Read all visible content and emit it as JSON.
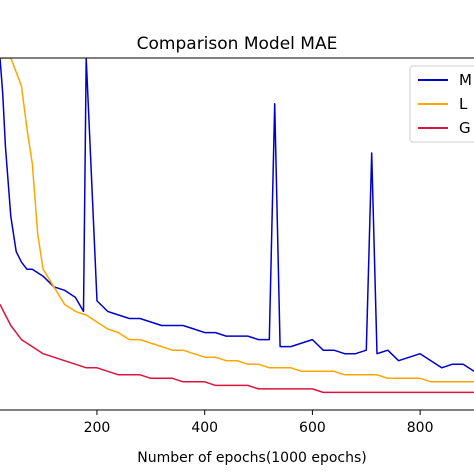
{
  "chart_data": {
    "type": "line",
    "title": "Comparison Model MAE",
    "xlabel": "Number of epochs(1000 epochs)",
    "ylabel": "",
    "xlim": [
      20,
      900
    ],
    "ylim": [
      0,
      100
    ],
    "x_ticks": [
      200,
      400,
      600,
      800
    ],
    "x_tick_labels": [
      "200",
      "400",
      "600",
      "800"
    ],
    "grid": false,
    "legend_position": "top-right",
    "legend_labels": [
      "M",
      "L",
      "G"
    ],
    "series": [
      {
        "color": "#0000cc",
        "x": [
          20,
          25,
          30,
          40,
          50,
          60,
          70,
          80,
          100,
          120,
          140,
          160,
          175,
          180,
          200,
          220,
          240,
          260,
          280,
          300,
          320,
          340,
          360,
          380,
          400,
          420,
          440,
          460,
          480,
          500,
          520,
          530,
          540,
          560,
          580,
          600,
          620,
          640,
          660,
          680,
          700,
          710,
          720,
          740,
          760,
          780,
          800,
          820,
          840,
          860,
          880,
          900
        ],
        "values": [
          100,
          90,
          75,
          55,
          45,
          42,
          40,
          40,
          38,
          35,
          34,
          32,
          28,
          100,
          31,
          28,
          27,
          26,
          26,
          25,
          24,
          24,
          24,
          23,
          22,
          22,
          21,
          21,
          21,
          20,
          20,
          87,
          18,
          18,
          19,
          20,
          17,
          17,
          16,
          16,
          17,
          73,
          16,
          17,
          14,
          15,
          16,
          14,
          12,
          13,
          13,
          11
        ]
      },
      {
        "color": "#ffa500",
        "x": [
          20,
          30,
          40,
          50,
          60,
          70,
          80,
          90,
          100,
          120,
          140,
          160,
          180,
          200,
          220,
          240,
          260,
          280,
          300,
          320,
          340,
          360,
          380,
          400,
          420,
          440,
          460,
          480,
          500,
          520,
          540,
          560,
          580,
          600,
          620,
          640,
          660,
          680,
          700,
          720,
          740,
          760,
          780,
          800,
          820,
          840,
          860,
          880,
          900
        ],
        "values": [
          100,
          100,
          100,
          96,
          92,
          80,
          70,
          50,
          40,
          35,
          30,
          28,
          27,
          25,
          23,
          22,
          20,
          20,
          19,
          18,
          17,
          17,
          16,
          15,
          15,
          14,
          14,
          13,
          13,
          12,
          12,
          12,
          11,
          11,
          11,
          11,
          10,
          10,
          10,
          10,
          9,
          9,
          9,
          9,
          8,
          8,
          8,
          8,
          8
        ]
      },
      {
        "color": "#dc143c",
        "x": [
          20,
          30,
          40,
          60,
          80,
          100,
          120,
          140,
          160,
          180,
          200,
          220,
          240,
          260,
          280,
          300,
          320,
          340,
          360,
          380,
          400,
          420,
          440,
          460,
          480,
          500,
          520,
          540,
          560,
          580,
          600,
          620,
          640,
          660,
          680,
          700,
          720,
          740,
          760,
          780,
          800,
          820,
          840,
          860,
          880,
          900
        ],
        "values": [
          30,
          27,
          24,
          20,
          18,
          16,
          15,
          14,
          13,
          12,
          12,
          11,
          10,
          10,
          10,
          9,
          9,
          9,
          8,
          8,
          8,
          7,
          7,
          7,
          7,
          6,
          6,
          6,
          6,
          6,
          6,
          5,
          5,
          5,
          5,
          5,
          5,
          5,
          5,
          5,
          5,
          5,
          5,
          5,
          5,
          5
        ]
      }
    ]
  }
}
